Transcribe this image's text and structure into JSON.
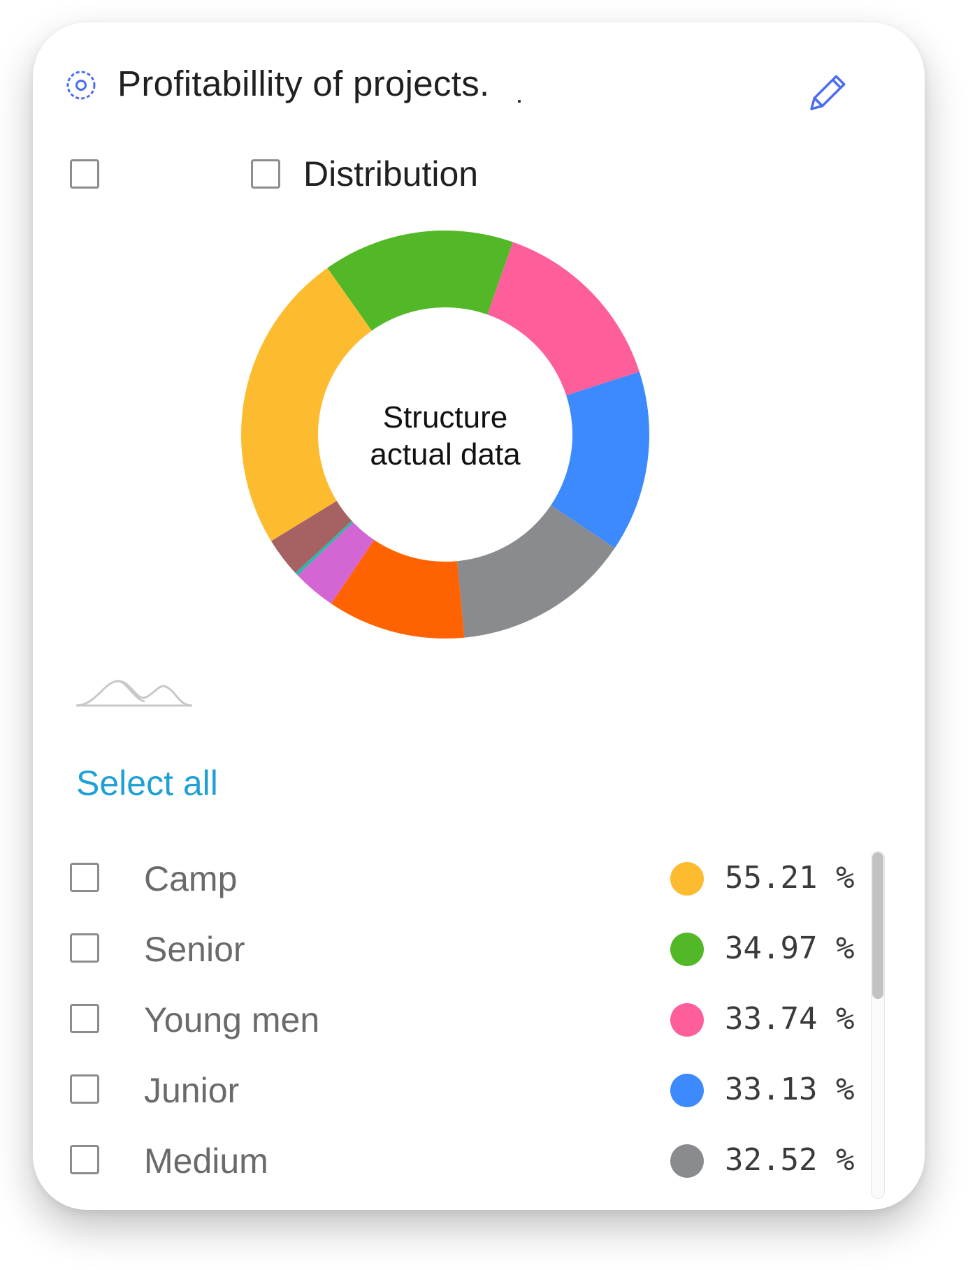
{
  "header": {
    "title": "Profitabillity of projects.",
    "settings_icon": "gear-icon",
    "edit_icon": "pencil-icon",
    "accent_color": "#4a6cf0"
  },
  "options": {
    "first_checkbox_label": "",
    "distribution_label": "Distribution"
  },
  "select_all_label": "Select all",
  "legend": [
    {
      "label": "Camp",
      "value_text": "55.21 %",
      "color": "#fdbb2f"
    },
    {
      "label": "Senior",
      "value_text": "34.97 %",
      "color": "#52b827"
    },
    {
      "label": "Young men",
      "value_text": "33.74 %",
      "color": "#fe5f9b"
    },
    {
      "label": "Junior",
      "value_text": "33.13 %",
      "color": "#3c8afe"
    },
    {
      "label": "Medium",
      "value_text": "32.52 %",
      "color": "#8a8b8f"
    }
  ],
  "chart_data": {
    "type": "pie",
    "donut": true,
    "center_text": [
      "Structure",
      "actual data"
    ],
    "series": [
      {
        "name": "Camp",
        "value": 55.21,
        "color": "#fdbb2f"
      },
      {
        "name": "Senior",
        "value": 34.97,
        "color": "#52b827"
      },
      {
        "name": "Young men",
        "value": 33.74,
        "color": "#fe5f9b"
      },
      {
        "name": "Junior",
        "value": 33.13,
        "color": "#3c8afe"
      },
      {
        "name": "Medium",
        "value": 32.52,
        "color": "#8a8b8f"
      },
      {
        "value": 25.2,
        "color": "#ff6200"
      },
      {
        "value": 7.9,
        "color": "#d466d4"
      },
      {
        "value": 0.6,
        "color": "#2bb8a8"
      },
      {
        "value": 7.2,
        "color": "#a66262"
      }
    ]
  }
}
